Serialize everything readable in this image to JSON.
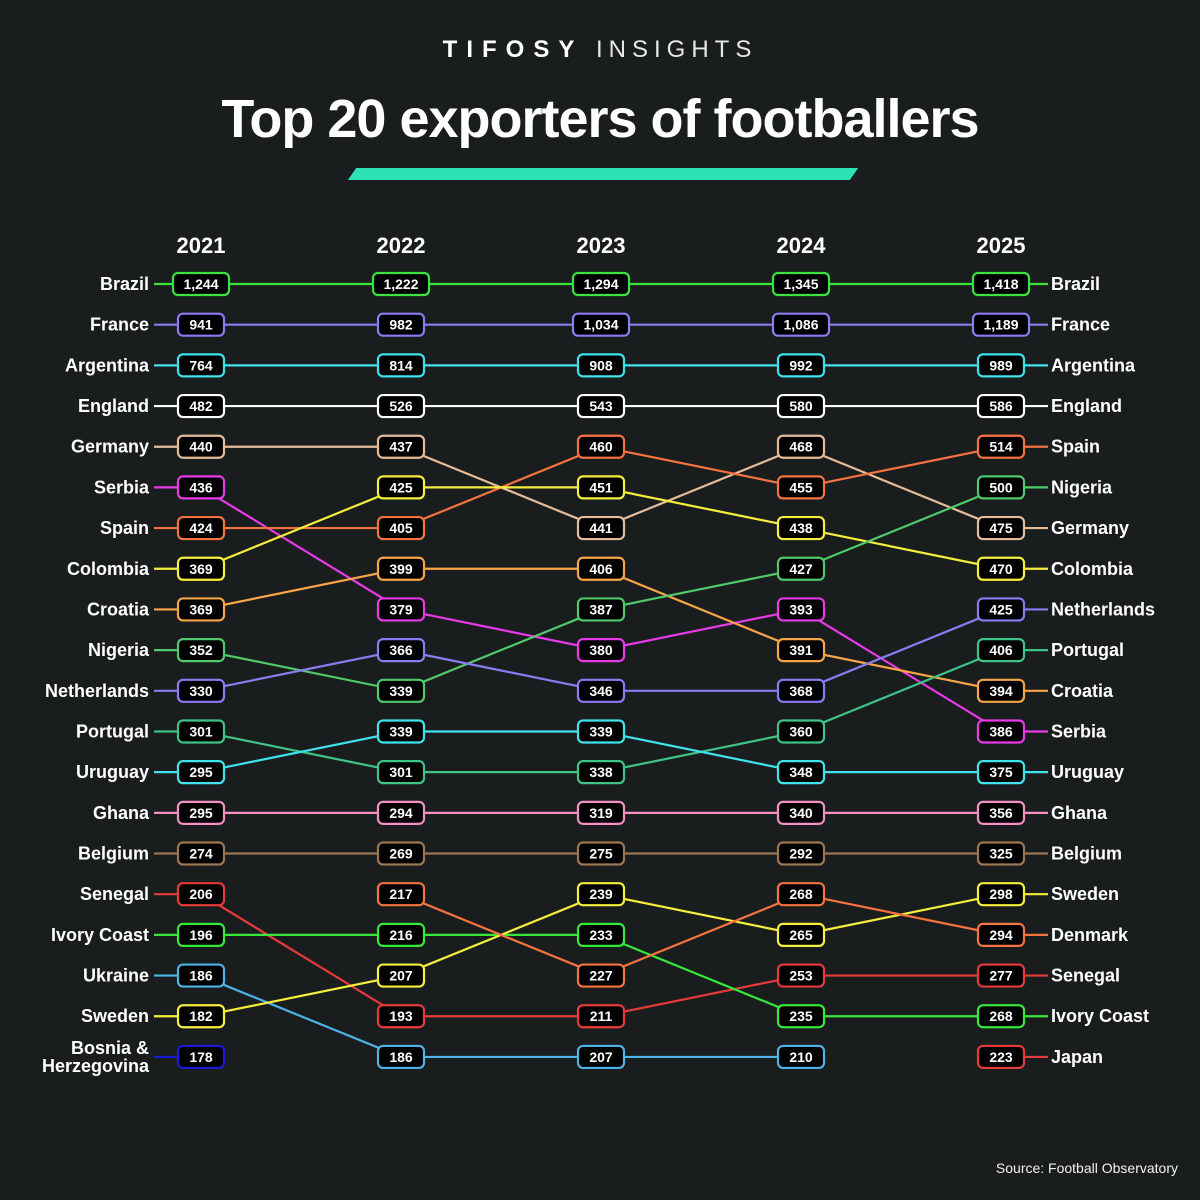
{
  "header": {
    "brand_bold": "TIFOSY",
    "brand_light": "INSIGHTS",
    "title": "Top 20 exporters of footballers",
    "accent_color": "#2de2b6"
  },
  "footer": {
    "source": "Source: Football Observatory"
  },
  "chart_data": {
    "type": "bump",
    "title": "Top 20 exporters of footballers",
    "xlabel": "",
    "ylabel": "",
    "years": [
      "2021",
      "2022",
      "2023",
      "2024",
      "2025"
    ],
    "legend": "country labels at left (2021) and right (2025)",
    "series": [
      {
        "name": "Brazil",
        "color": "#39e43c",
        "ranks": [
          1,
          1,
          1,
          1,
          1
        ],
        "values": [
          "1,244",
          "1,222",
          "1,294",
          "1,345",
          "1,418"
        ]
      },
      {
        "name": "France",
        "color": "#8a7cf2",
        "ranks": [
          2,
          2,
          2,
          2,
          2
        ],
        "values": [
          "941",
          "982",
          "1,034",
          "1,086",
          "1,189"
        ]
      },
      {
        "name": "Argentina",
        "color": "#3ee3ec",
        "ranks": [
          3,
          3,
          3,
          3,
          3
        ],
        "values": [
          "764",
          "814",
          "908",
          "992",
          "989"
        ]
      },
      {
        "name": "England",
        "color": "#ffffff",
        "ranks": [
          4,
          4,
          4,
          4,
          4
        ],
        "values": [
          "482",
          "526",
          "543",
          "580",
          "586"
        ]
      },
      {
        "name": "Germany",
        "color": "#e6bc98",
        "ranks": [
          5,
          5,
          7,
          5,
          7
        ],
        "values": [
          "440",
          "437",
          "441",
          "468",
          "475"
        ]
      },
      {
        "name": "Serbia",
        "color": "#e83ae8",
        "ranks": [
          6,
          9,
          10,
          9,
          12
        ],
        "values": [
          "436",
          "379",
          "380",
          "393",
          "386"
        ]
      },
      {
        "name": "Spain",
        "color": "#f4733f",
        "ranks": [
          7,
          7,
          5,
          6,
          5
        ],
        "values": [
          "424",
          "405",
          "460",
          "455",
          "514"
        ]
      },
      {
        "name": "Colombia",
        "color": "#f6ee3c",
        "ranks": [
          8,
          6,
          6,
          7,
          8
        ],
        "values": [
          "369",
          "425",
          "451",
          "438",
          "470"
        ]
      },
      {
        "name": "Croatia",
        "color": "#f8a548",
        "ranks": [
          9,
          8,
          8,
          10,
          11
        ],
        "values": [
          "369",
          "399",
          "406",
          "391",
          "394"
        ]
      },
      {
        "name": "Nigeria",
        "color": "#4fc96a",
        "ranks": [
          10,
          11,
          9,
          8,
          6
        ],
        "values": [
          "352",
          "339",
          "387",
          "427",
          "500"
        ]
      },
      {
        "name": "Netherlands",
        "color": "#8a7cf2",
        "ranks": [
          11,
          10,
          11,
          11,
          9
        ],
        "values": [
          "330",
          "366",
          "346",
          "368",
          "425"
        ]
      },
      {
        "name": "Portugal",
        "color": "#3dc487",
        "ranks": [
          12,
          13,
          13,
          12,
          10
        ],
        "values": [
          "301",
          "301",
          "338",
          "360",
          "406"
        ]
      },
      {
        "name": "Uruguay",
        "color": "#3ee3ec",
        "ranks": [
          13,
          12,
          12,
          13,
          13
        ],
        "values": [
          "295",
          "339",
          "339",
          "348",
          "375"
        ]
      },
      {
        "name": "Ghana",
        "color": "#f58fc4",
        "ranks": [
          14,
          14,
          14,
          14,
          14
        ],
        "values": [
          "295",
          "294",
          "319",
          "340",
          "356"
        ]
      },
      {
        "name": "Belgium",
        "color": "#9c7552",
        "ranks": [
          15,
          15,
          15,
          15,
          15
        ],
        "values": [
          "274",
          "269",
          "275",
          "292",
          "325"
        ]
      },
      {
        "name": "Senegal",
        "color": "#e83a3a",
        "ranks": [
          16,
          19,
          19,
          18,
          18
        ],
        "values": [
          "206",
          "193",
          "211",
          "253",
          "277"
        ]
      },
      {
        "name": "Ivory Coast",
        "color": "#35e83a",
        "ranks": [
          17,
          17,
          17,
          19,
          19
        ],
        "values": [
          "196",
          "216",
          "233",
          "235",
          "268"
        ]
      },
      {
        "name": "Ukraine",
        "color": "#4cb3e8",
        "ranks": [
          18,
          20,
          20,
          20,
          null
        ],
        "values": [
          "186",
          "186",
          "207",
          "210",
          null
        ]
      },
      {
        "name": "Sweden",
        "color": "#f6ee3c",
        "ranks": [
          19,
          18,
          16,
          17,
          16
        ],
        "values": [
          "182",
          "207",
          "239",
          "265",
          "298"
        ]
      },
      {
        "name": "Bosnia & Herzegovina",
        "label_lines": [
          "Bosnia &",
          "Herzegovina"
        ],
        "color": "#1a1ad8",
        "ranks": [
          20,
          null,
          null,
          null,
          null
        ],
        "values": [
          "178",
          null,
          null,
          null,
          null
        ]
      },
      {
        "name": "Denmark",
        "color": "#f4733f",
        "ranks": [
          null,
          16,
          18,
          16,
          17
        ],
        "values": [
          null,
          "217",
          "227",
          "268",
          "294"
        ]
      },
      {
        "name": "Japan",
        "color": "#e83a3a",
        "ranks": [
          null,
          null,
          null,
          null,
          20
        ],
        "values": [
          null,
          null,
          null,
          null,
          "223"
        ]
      }
    ]
  }
}
